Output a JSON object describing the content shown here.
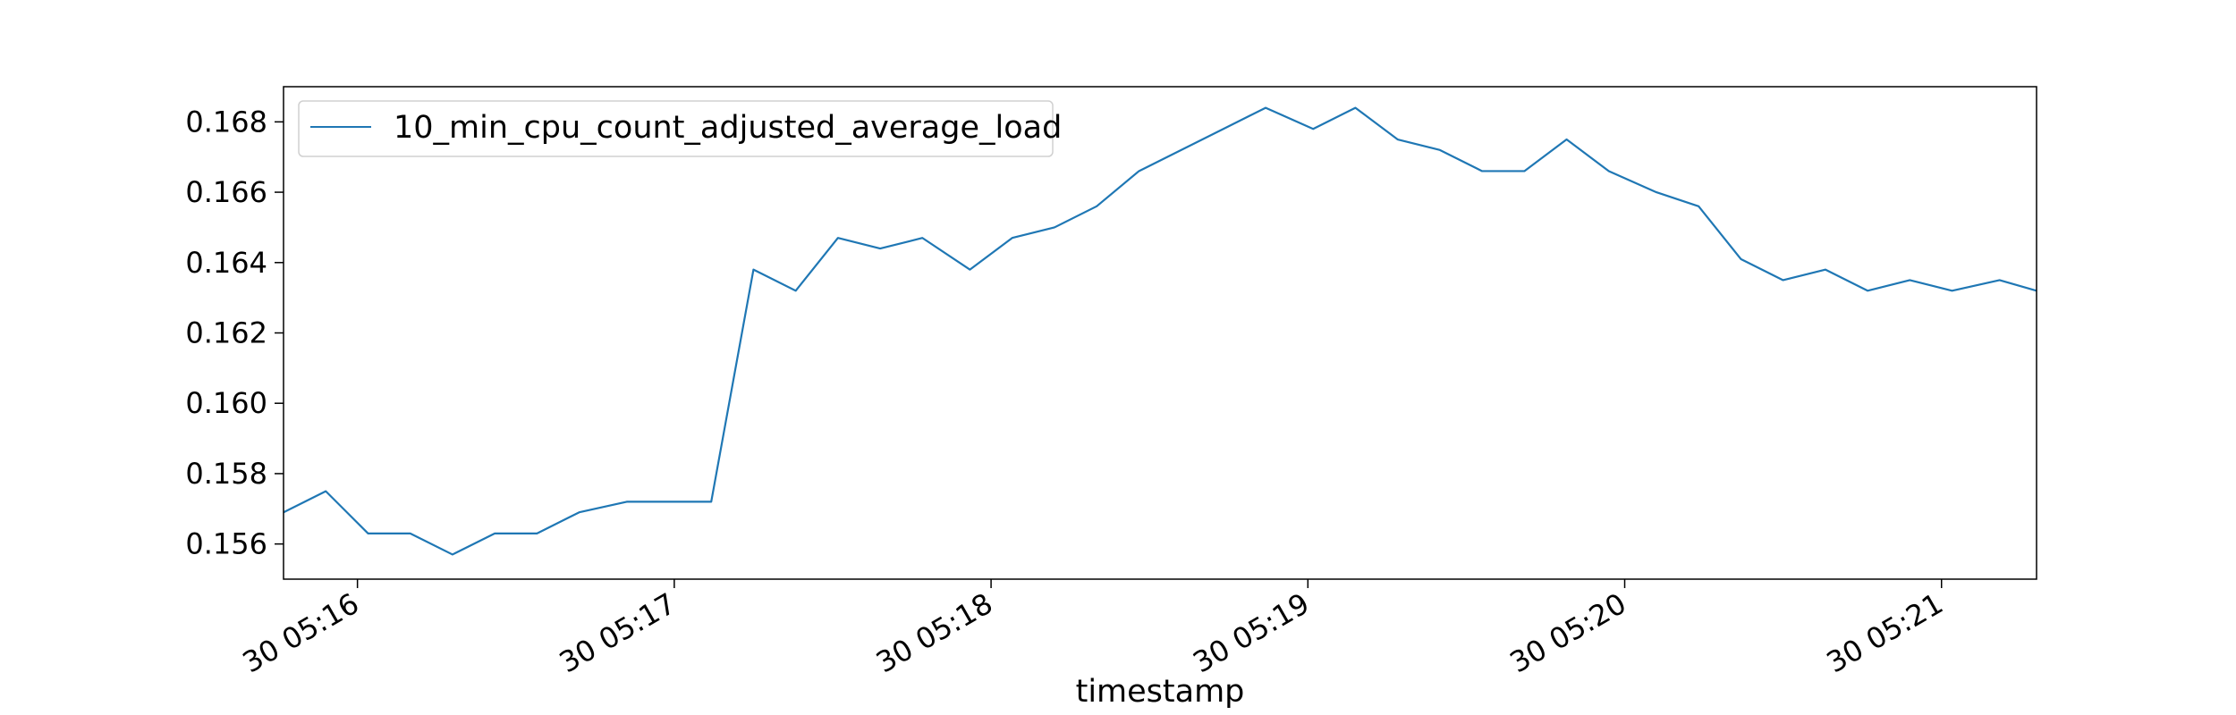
{
  "chart_data": {
    "type": "line",
    "title": "",
    "xlabel": "timestamp",
    "ylabel": "",
    "grid": false,
    "legend": {
      "placement": "upper-left",
      "entries": [
        "10_min_cpu_count_adjusted_average_load"
      ]
    },
    "colors": {
      "series": "#1f77b4",
      "axes": "#000000",
      "background": "#ffffff"
    },
    "x_range": [
      "05:15:46",
      "05:21:18"
    ],
    "ylim": [
      0.155,
      0.169
    ],
    "x_ticks": [
      {
        "time": "05:16:00",
        "label": "30 05:16"
      },
      {
        "time": "05:17:00",
        "label": "30 05:17"
      },
      {
        "time": "05:18:00",
        "label": "30 05:18"
      },
      {
        "time": "05:19:00",
        "label": "30 05:19"
      },
      {
        "time": "05:20:00",
        "label": "30 05:20"
      },
      {
        "time": "05:21:00",
        "label": "30 05:21"
      }
    ],
    "y_ticks": [
      {
        "value": 0.156,
        "label": "0.156"
      },
      {
        "value": 0.158,
        "label": "0.158"
      },
      {
        "value": 0.16,
        "label": "0.160"
      },
      {
        "value": 0.162,
        "label": "0.162"
      },
      {
        "value": 0.164,
        "label": "0.164"
      },
      {
        "value": 0.166,
        "label": "0.166"
      },
      {
        "value": 0.168,
        "label": "0.168"
      }
    ],
    "series": [
      {
        "name": "10_min_cpu_count_adjusted_average_load",
        "x": [
          "05:15:46",
          "05:15:54",
          "05:16:02",
          "05:16:10",
          "05:16:18",
          "05:16:26",
          "05:16:34",
          "05:16:42",
          "05:16:51",
          "05:16:59",
          "05:17:07",
          "05:17:15",
          "05:17:23",
          "05:17:31",
          "05:17:39",
          "05:17:47",
          "05:17:56",
          "05:18:04",
          "05:18:12",
          "05:18:20",
          "05:18:28",
          "05:18:36",
          "05:18:44",
          "05:18:52",
          "05:19:01",
          "05:19:09",
          "05:19:17",
          "05:19:25",
          "05:19:33",
          "05:19:41",
          "05:19:49",
          "05:19:57",
          "05:20:06",
          "05:20:14",
          "05:20:22",
          "05:20:30",
          "05:20:38",
          "05:20:46",
          "05:20:54",
          "05:21:02",
          "05:21:11",
          "05:21:18"
        ],
        "y": [
          0.1569,
          0.1575,
          0.1563,
          0.1563,
          0.1557,
          0.1563,
          0.1563,
          0.1569,
          0.1572,
          0.1572,
          0.1572,
          0.1638,
          0.1632,
          0.1647,
          0.1644,
          0.1647,
          0.1638,
          0.1647,
          0.165,
          0.1656,
          0.1666,
          0.1672,
          0.1678,
          0.1684,
          0.1678,
          0.1684,
          0.1675,
          0.1672,
          0.1666,
          0.1666,
          0.1675,
          0.1666,
          0.166,
          0.1656,
          0.1641,
          0.1635,
          0.1638,
          0.1632,
          0.1635,
          0.1632,
          0.1635,
          0.1632
        ]
      }
    ]
  }
}
